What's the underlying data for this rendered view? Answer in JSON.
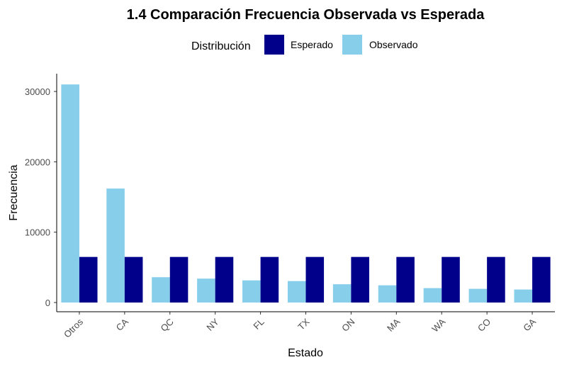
{
  "chart_data": {
    "type": "bar",
    "title": "1.4 Comparación Frecuencia Observada vs Esperada",
    "xlabel": "Estado",
    "ylabel": "Frecuencia",
    "legend_title": "Distribución",
    "legend_position": "top",
    "grid": false,
    "categories": [
      "Otros",
      "CA",
      "QC",
      "NY",
      "FL",
      "TX",
      "ON",
      "MA",
      "WA",
      "CO",
      "GA"
    ],
    "yticks": [
      0,
      10000,
      20000,
      30000
    ],
    "ytick_labels": [
      "0",
      "10000",
      "20000",
      "30000"
    ],
    "ylim": [
      0,
      32500
    ],
    "series": [
      {
        "name": "Observado",
        "color": "#87CEEB",
        "values": [
          31000,
          16200,
          3600,
          3400,
          3150,
          3050,
          2600,
          2450,
          2050,
          1950,
          1850
        ]
      },
      {
        "name": "Esperado",
        "color": "#00008B",
        "values": [
          6480,
          6480,
          6480,
          6480,
          6480,
          6480,
          6480,
          6480,
          6480,
          6480,
          6480
        ]
      }
    ],
    "legend_order": [
      "Esperado",
      "Observado"
    ]
  }
}
